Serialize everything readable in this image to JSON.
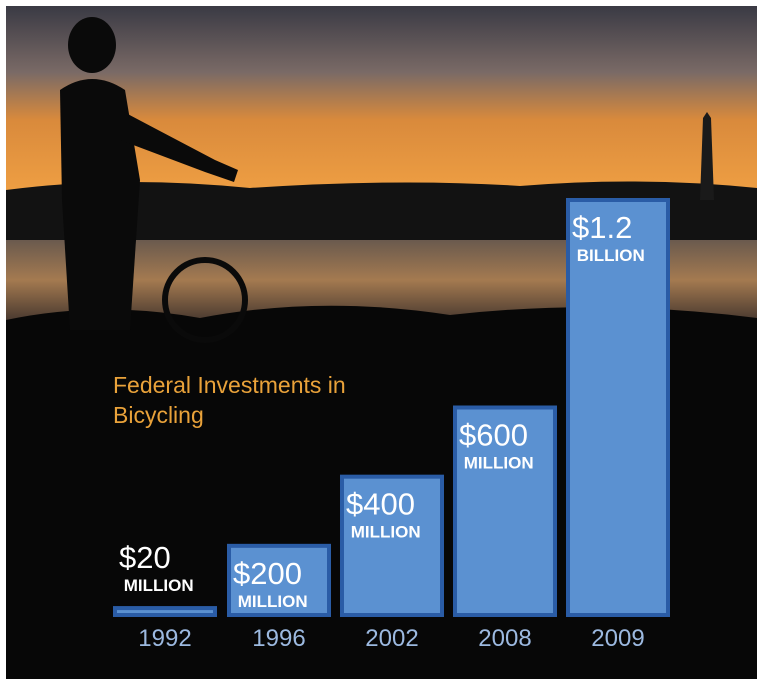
{
  "chart_data": {
    "type": "bar",
    "title": "Federal Investments in Bicycling",
    "categories": [
      "1992",
      "1996",
      "2002",
      "2008",
      "2009"
    ],
    "values": [
      20000000,
      200000000,
      400000000,
      600000000,
      1200000000
    ],
    "value_labels": [
      "$20 MILLION",
      "$200 MILLION",
      "$400 MILLION",
      "$600 MILLION",
      "$1.2 BILLION"
    ],
    "color": "#5b91d1"
  }
}
